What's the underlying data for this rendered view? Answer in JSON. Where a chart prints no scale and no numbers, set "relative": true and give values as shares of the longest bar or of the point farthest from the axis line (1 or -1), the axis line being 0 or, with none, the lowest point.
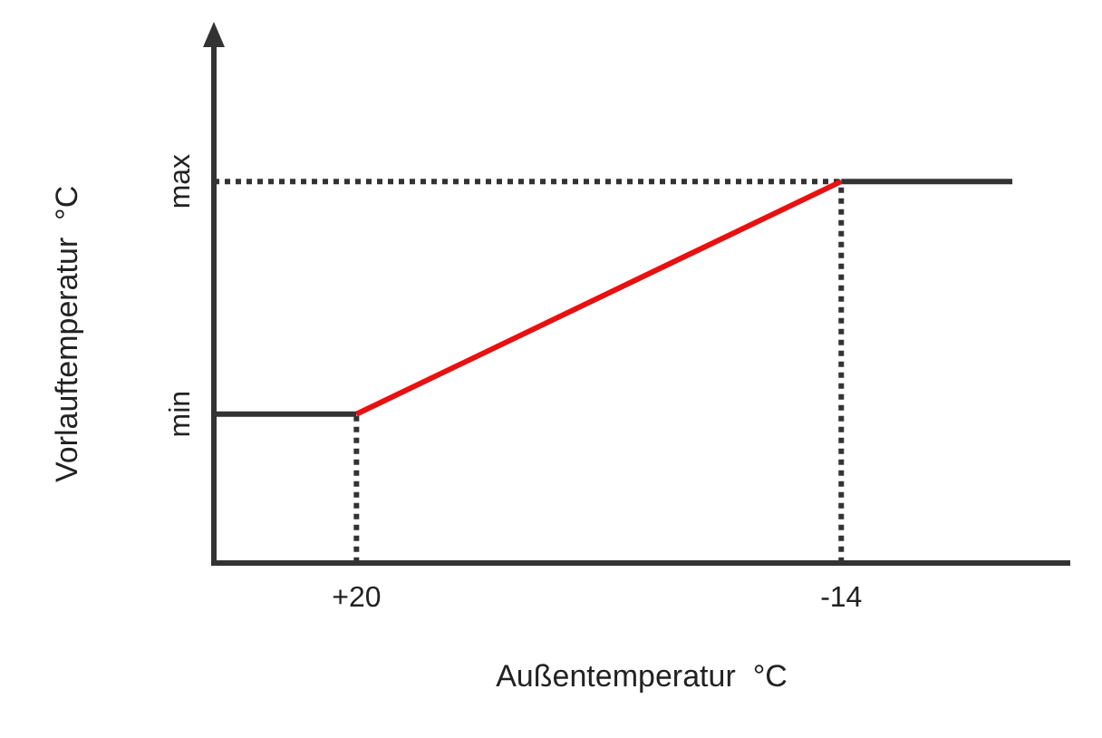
{
  "chart_data": {
    "type": "line",
    "xlabel": "Außentemperatur  °C",
    "ylabel": "Vorlauftemperatur  °C",
    "xlim": [
      30,
      -30
    ],
    "xticks": [
      {
        "value": 20,
        "label": "+20"
      },
      -14
    ],
    "relative": true,
    "annotations": [
      {
        "text": "min",
        "x": 30,
        "y": 0.39
      },
      {
        "text": "max",
        "x": 30,
        "y": 1
      }
    ],
    "ref_lines": [
      {
        "axis": "x",
        "value": 30,
        "color": "#333333",
        "line_style": "solid"
      }
    ],
    "grid": false,
    "legend": false,
    "marker": "none",
    "series": [
      {
        "color": "#333333",
        "x": [
          30,
          20
        ],
        "values": [
          0.39,
          0.39
        ],
        "line_style": "solid"
      },
      {
        "color": "#e81010",
        "x": [
          20,
          -14
        ],
        "values": [
          0.39,
          1
        ],
        "line_style": "solid"
      },
      {
        "color": "#333333",
        "x": [
          -14,
          -26
        ],
        "values": [
          1,
          1
        ],
        "line_style": "solid"
      },
      {
        "color": "#333333",
        "x": [
          30,
          -14
        ],
        "values": [
          1,
          1
        ],
        "line_style": "dotted"
      },
      {
        "color": "#333333",
        "x": [
          20,
          20
        ],
        "values": [
          0,
          0.39
        ],
        "line_style": "dotted"
      },
      {
        "color": "#333333",
        "x": [
          -14,
          -14
        ],
        "values": [
          0,
          1
        ],
        "line_style": "dotted"
      }
    ]
  }
}
